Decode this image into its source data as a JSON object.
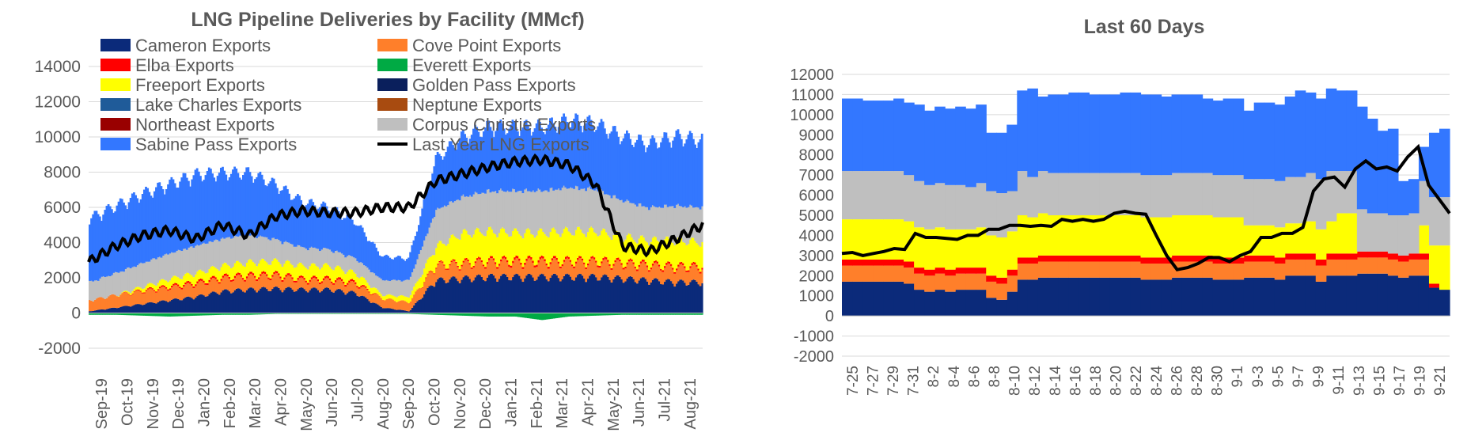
{
  "chart_data": [
    {
      "type": "area",
      "title": "LNG Pipeline Deliveries by Facility (MMcf)",
      "ylim": [
        -2000,
        14000
      ],
      "yticks": [
        -2000,
        0,
        2000,
        4000,
        6000,
        8000,
        10000,
        12000,
        14000
      ],
      "categories": [
        "Sep-19",
        "Oct-19",
        "Nov-19",
        "Dec-19",
        "Jan-20",
        "Feb-20",
        "Mar-20",
        "Apr-20",
        "May-20",
        "Jun-20",
        "Jul-20",
        "Aug-20",
        "Sep-20",
        "Oct-20",
        "Nov-20",
        "Dec-20",
        "Jan-21",
        "Feb-21",
        "Mar-21",
        "Apr-21",
        "May-21",
        "Jun-21",
        "Jul-21",
        "Aug-21"
      ],
      "grid": true,
      "legend_placement": "top",
      "series": [
        {
          "name": "Cameron Exports",
          "color": "#0b2a7a",
          "values": [
            100,
            300,
            500,
            700,
            900,
            1200,
            1300,
            1350,
            1300,
            1300,
            1100,
            300,
            100,
            1800,
            1900,
            2000,
            2000,
            2000,
            2000,
            2000,
            1900,
            1800,
            1700,
            1700
          ]
        },
        {
          "name": "Elba Exports",
          "color": "#ff0000",
          "values": [
            0,
            0,
            50,
            80,
            100,
            100,
            100,
            100,
            100,
            100,
            100,
            0,
            0,
            50,
            80,
            100,
            120,
            120,
            100,
            100,
            100,
            100,
            100,
            100
          ]
        },
        {
          "name": "Freeport Exports",
          "color": "#ffff00",
          "values": [
            0,
            0,
            200,
            400,
            500,
            600,
            700,
            700,
            700,
            700,
            500,
            200,
            300,
            1000,
            1600,
            1600,
            1500,
            1500,
            1600,
            1600,
            1400,
            1300,
            1400,
            1300
          ]
        },
        {
          "name": "Lake Charles Exports",
          "color": "#1f5b99",
          "values": [
            0,
            0,
            0,
            0,
            0,
            0,
            0,
            0,
            0,
            0,
            0,
            0,
            0,
            0,
            0,
            0,
            0,
            0,
            0,
            0,
            0,
            0,
            0,
            0
          ]
        },
        {
          "name": "Northeast Exports",
          "color": "#990000",
          "values": [
            0,
            0,
            0,
            0,
            0,
            0,
            0,
            0,
            0,
            0,
            0,
            0,
            0,
            0,
            0,
            0,
            0,
            0,
            0,
            0,
            0,
            0,
            0,
            0
          ]
        },
        {
          "name": "Sabine Pass Exports",
          "color": "#3377ff",
          "values": [
            3500,
            3700,
            3800,
            3800,
            3900,
            3600,
            3400,
            3000,
            2500,
            2300,
            2000,
            1300,
            1200,
            2800,
            3300,
            3500,
            3500,
            3500,
            3700,
            3600,
            3500,
            3500,
            3800,
            3700
          ]
        },
        {
          "name": "Cove Point Exports",
          "color": "#ff7f2a",
          "values": [
            600,
            700,
            700,
            700,
            700,
            700,
            700,
            700,
            500,
            500,
            500,
            500,
            500,
            800,
            800,
            800,
            800,
            800,
            800,
            800,
            800,
            800,
            800,
            800
          ]
        },
        {
          "name": "Everett Exports",
          "color": "#00aa44",
          "values": [
            -100,
            -100,
            -150,
            -200,
            -150,
            -100,
            -100,
            -50,
            -50,
            -50,
            -50,
            -50,
            -50,
            -100,
            -150,
            -200,
            -200,
            -400,
            -200,
            -150,
            -100,
            -100,
            -100,
            -100
          ]
        },
        {
          "name": "Golden Pass Exports",
          "color": "#0a1f5c",
          "values": [
            0,
            0,
            0,
            0,
            0,
            0,
            0,
            0,
            0,
            0,
            0,
            0,
            0,
            0,
            0,
            0,
            0,
            0,
            0,
            0,
            0,
            0,
            0,
            0
          ]
        },
        {
          "name": "Neptune Exports",
          "color": "#a84b10",
          "values": [
            0,
            0,
            0,
            0,
            0,
            0,
            0,
            0,
            0,
            0,
            0,
            0,
            0,
            0,
            0,
            0,
            0,
            0,
            0,
            0,
            0,
            0,
            0,
            0
          ]
        },
        {
          "name": "Corpus Christie Exports",
          "color": "#bfbfbf",
          "values": [
            1000,
            1200,
            1300,
            1400,
            1500,
            1500,
            1500,
            1200,
            1000,
            900,
            800,
            800,
            900,
            2000,
            2000,
            2200,
            2300,
            2300,
            2400,
            2300,
            2000,
            1800,
            1900,
            1900
          ]
        },
        {
          "name": "Last Year LNG Exports",
          "color": "#000000",
          "type": "line",
          "values": [
            2900,
            3800,
            4400,
            4700,
            4200,
            5000,
            4400,
            5500,
            5800,
            5700,
            5700,
            6000,
            6000,
            7500,
            7900,
            8300,
            8600,
            8700,
            8400,
            7300,
            3800,
            3500,
            4200,
            5000
          ]
        }
      ]
    },
    {
      "type": "area",
      "title": "Last 60 Days",
      "ylim": [
        -2000,
        12000
      ],
      "yticks": [
        -2000,
        -1000,
        0,
        1000,
        2000,
        3000,
        4000,
        5000,
        6000,
        7000,
        8000,
        9000,
        10000,
        11000,
        12000
      ],
      "categories": [
        "7-25",
        "7-27",
        "7-29",
        "7-31",
        "8-2",
        "8-4",
        "8-6",
        "8-8",
        "8-10",
        "8-12",
        "8-14",
        "8-16",
        "8-18",
        "8-20",
        "8-22",
        "8-24",
        "8-26",
        "8-28",
        "8-30",
        "9-1",
        "9-3",
        "9-5",
        "9-7",
        "9-9",
        "9-11",
        "9-13",
        "9-15",
        "9-17",
        "9-19",
        "9-21"
      ],
      "x": [
        "7-25",
        "7-26",
        "7-27",
        "7-28",
        "7-29",
        "7-30",
        "7-31",
        "8-1",
        "8-2",
        "8-3",
        "8-4",
        "8-5",
        "8-6",
        "8-7",
        "8-8",
        "8-9",
        "8-10",
        "8-11",
        "8-12",
        "8-13",
        "8-14",
        "8-15",
        "8-16",
        "8-17",
        "8-18",
        "8-19",
        "8-20",
        "8-21",
        "8-22",
        "8-23",
        "8-24",
        "8-25",
        "8-26",
        "8-27",
        "8-28",
        "8-29",
        "8-30",
        "8-31",
        "9-1",
        "9-2",
        "9-3",
        "9-4",
        "9-5",
        "9-6",
        "9-7",
        "9-8",
        "9-9",
        "9-10",
        "9-11",
        "9-12",
        "9-13",
        "9-14",
        "9-15",
        "9-16",
        "9-17",
        "9-18",
        "9-19",
        "9-20",
        "9-21"
      ],
      "grid": true,
      "series": [
        {
          "name": "Cameron Exports",
          "color": "#0b2a7a",
          "values": [
            1700,
            1700,
            1700,
            1700,
            1700,
            1700,
            1600,
            1300,
            1200,
            1300,
            1200,
            1300,
            1300,
            1300,
            900,
            800,
            1200,
            1800,
            1800,
            1900,
            1900,
            1900,
            1900,
            1900,
            1900,
            1900,
            1900,
            1900,
            1900,
            1800,
            1800,
            1800,
            1900,
            1900,
            1900,
            1900,
            1800,
            1800,
            1800,
            1900,
            1900,
            1900,
            1800,
            2000,
            2000,
            2000,
            1700,
            2000,
            2000,
            2000,
            2100,
            2100,
            2100,
            2000,
            1900,
            2000,
            2000,
            1400,
            1300
          ]
        },
        {
          "name": "Cove Point Exports",
          "color": "#ff7f2a",
          "values": [
            800,
            800,
            800,
            800,
            800,
            800,
            800,
            800,
            800,
            800,
            800,
            800,
            800,
            800,
            800,
            800,
            800,
            800,
            800,
            800,
            800,
            800,
            800,
            800,
            800,
            800,
            800,
            800,
            800,
            800,
            800,
            800,
            800,
            800,
            800,
            800,
            800,
            800,
            800,
            800,
            800,
            800,
            800,
            800,
            800,
            800,
            800,
            800,
            800,
            800,
            800,
            800,
            800,
            800,
            800,
            800,
            800,
            0,
            0
          ]
        },
        {
          "name": "Elba Exports",
          "color": "#ff0000",
          "values": [
            300,
            300,
            300,
            300,
            300,
            300,
            300,
            300,
            300,
            300,
            300,
            300,
            300,
            300,
            300,
            300,
            300,
            300,
            300,
            300,
            300,
            300,
            300,
            300,
            300,
            300,
            300,
            300,
            300,
            300,
            300,
            300,
            300,
            300,
            300,
            300,
            300,
            300,
            300,
            300,
            300,
            300,
            300,
            300,
            300,
            300,
            300,
            300,
            300,
            300,
            300,
            300,
            300,
            300,
            300,
            300,
            300,
            200,
            0
          ]
        },
        {
          "name": "Freeport Exports",
          "color": "#ffff00",
          "values": [
            2000,
            2000,
            2000,
            2000,
            2000,
            2000,
            2000,
            2000,
            2000,
            2000,
            2000,
            1900,
            1900,
            2000,
            2000,
            2000,
            1900,
            2100,
            2000,
            2100,
            2000,
            2000,
            2000,
            2000,
            2000,
            2000,
            2000,
            2000,
            2000,
            2000,
            2000,
            2000,
            2000,
            2000,
            2000,
            2000,
            2000,
            2000,
            2000,
            1500,
            1500,
            1500,
            1500,
            1500,
            1500,
            1600,
            1500,
            1600,
            2000,
            2000,
            0,
            0,
            0,
            0,
            0,
            0,
            1400,
            1900,
            2200
          ]
        },
        {
          "name": "Corpus Christie Exports",
          "color": "#bfbfbf",
          "values": [
            2400,
            2400,
            2400,
            2400,
            2400,
            2400,
            2300,
            2300,
            2200,
            2200,
            2200,
            2200,
            2100,
            2200,
            2200,
            2200,
            2000,
            2200,
            2000,
            2100,
            2100,
            2100,
            2100,
            2100,
            2100,
            2100,
            2100,
            2100,
            2100,
            2100,
            2100,
            2100,
            2100,
            2100,
            2100,
            2100,
            2100,
            2100,
            2100,
            2300,
            2300,
            2300,
            2300,
            2300,
            2300,
            2400,
            2500,
            2500,
            2100,
            2100,
            2100,
            1900,
            1900,
            1900,
            2000,
            2000,
            2200,
            2400,
            2400
          ]
        },
        {
          "name": "Sabine Pass Exports",
          "color": "#3377ff",
          "values": [
            3600,
            3600,
            3500,
            3500,
            3500,
            3600,
            3600,
            3800,
            3700,
            3800,
            3800,
            3900,
            3900,
            3900,
            2900,
            3000,
            3300,
            4000,
            4400,
            3700,
            3900,
            3900,
            4000,
            4000,
            3900,
            3900,
            3900,
            4000,
            4000,
            4000,
            4000,
            3900,
            3900,
            3900,
            3900,
            3700,
            3700,
            3800,
            3800,
            3400,
            3800,
            3800,
            3800,
            4000,
            4300,
            4000,
            4000,
            4100,
            4000,
            4000,
            5100,
            4700,
            4100,
            4300,
            1700,
            1700,
            1700,
            3200,
            3400
          ]
        },
        {
          "name": "Everett Exports",
          "color": "#00aa44",
          "values": [
            0,
            0,
            0,
            0,
            0,
            0,
            0,
            0,
            0,
            0,
            0,
            0,
            0,
            0,
            0,
            0,
            0,
            0,
            0,
            0,
            0,
            0,
            0,
            0,
            0,
            0,
            0,
            0,
            0,
            0,
            0,
            0,
            0,
            0,
            0,
            0,
            0,
            0,
            0,
            0,
            0,
            0,
            0,
            0,
            0,
            0,
            0,
            0,
            0,
            0,
            0,
            0,
            0,
            0,
            0,
            0,
            0,
            0,
            0
          ]
        },
        {
          "name": "Last Year LNG Exports",
          "color": "#000000",
          "type": "line",
          "values": [
            3100,
            3150,
            3000,
            3100,
            3200,
            3350,
            3300,
            4100,
            3900,
            3900,
            3850,
            3800,
            4000,
            4000,
            4300,
            4300,
            4500,
            4500,
            4450,
            4500,
            4450,
            4800,
            4700,
            4800,
            4700,
            4800,
            5100,
            5200,
            5100,
            5050,
            4000,
            3000,
            2300,
            2400,
            2600,
            2900,
            2900,
            2700,
            3000,
            3200,
            3900,
            3900,
            4100,
            4100,
            4400,
            6200,
            6800,
            6900,
            6400,
            7300,
            7700,
            7300,
            7400,
            7200,
            7900,
            8400,
            6500,
            5800,
            5100
          ]
        }
      ]
    }
  ]
}
